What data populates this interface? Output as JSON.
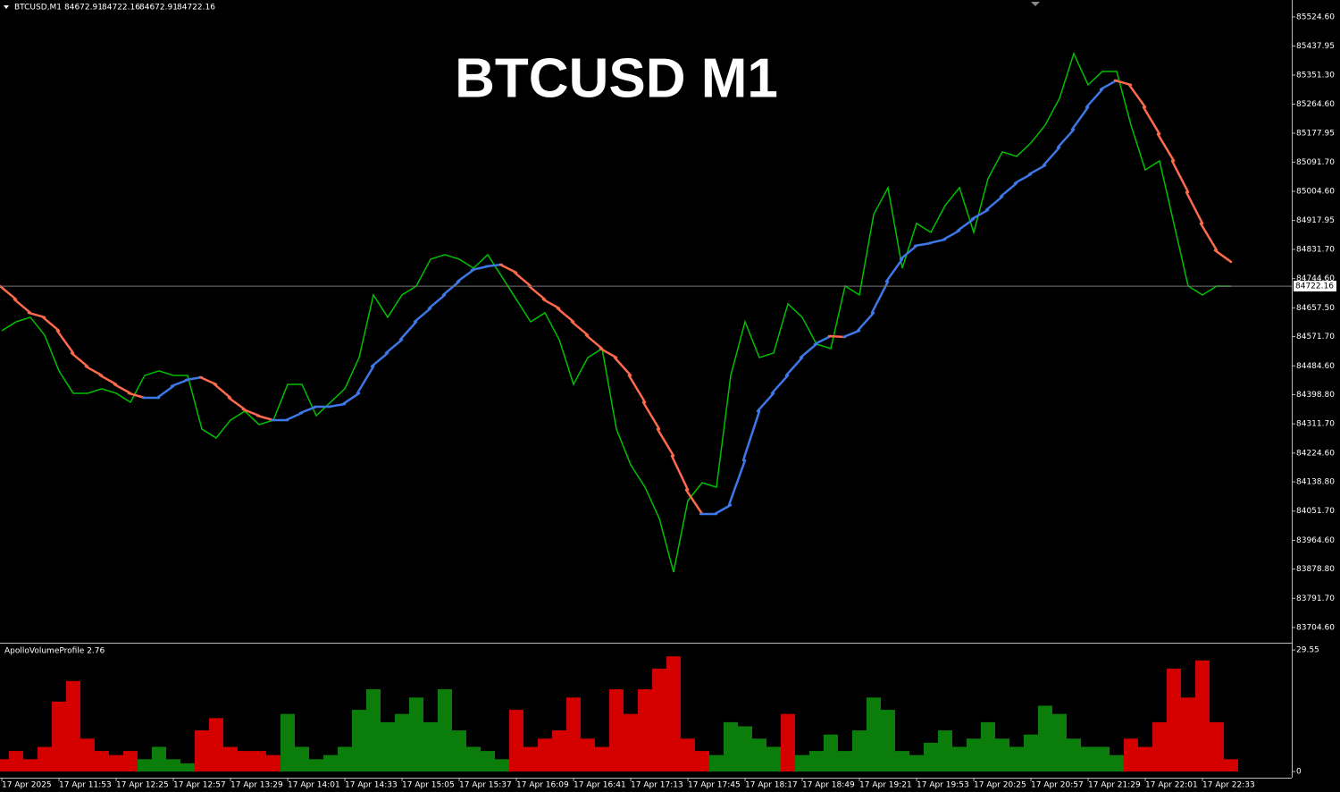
{
  "chart_data": [
    {
      "type": "line",
      "title": "BTCUSD M1",
      "header": "BTCUSD,M1",
      "ohlc": [
        84672.91,
        84722.16,
        84672.91,
        84722.16
      ],
      "last_price": 84722.16,
      "ylim": [
        83662,
        85575
      ],
      "yticks": [
        {
          "value": 85524.6,
          "label": "85524.60"
        },
        {
          "value": 85437.95,
          "label": "85437.95"
        },
        {
          "value": 85351.3,
          "label": "85351.30"
        },
        {
          "value": 85264.6,
          "label": "85264.60"
        },
        {
          "value": 85177.95,
          "label": "85177.95"
        },
        {
          "value": 85091.7,
          "label": "85091.70"
        },
        {
          "value": 85004.6,
          "label": "85004.60"
        },
        {
          "value": 84917.95,
          "label": "84917.95"
        },
        {
          "value": 84831.7,
          "label": "84831.70"
        },
        {
          "value": 84744.6,
          "label": "84744.60"
        },
        {
          "value": 84657.5,
          "label": "84657.50"
        },
        {
          "value": 84571.7,
          "label": "84571.70"
        },
        {
          "value": 84484.6,
          "label": "84484.60"
        },
        {
          "value": 84398.8,
          "label": "84398.80"
        },
        {
          "value": 84311.7,
          "label": "84311.70"
        },
        {
          "value": 84224.6,
          "label": "84224.60"
        },
        {
          "value": 84138.8,
          "label": "84138.80"
        },
        {
          "value": 84051.7,
          "label": "84051.70"
        },
        {
          "value": 83964.6,
          "label": "83964.60"
        },
        {
          "value": 83878.8,
          "label": "83878.80"
        },
        {
          "value": 83791.7,
          "label": "83791.70"
        },
        {
          "value": 83704.6,
          "label": "83704.60"
        }
      ],
      "series": [
        {
          "color": "#00c000",
          "values": [
            84589.3,
            84615.9,
            84629.3,
            84576.0,
            84469.4,
            84402.8,
            84402.8,
            84416.1,
            84402.8,
            84376.1,
            84456.1,
            84469.4,
            84456.1,
            84456.1,
            84296.2,
            84269.5,
            84322.8,
            84349.5,
            84309.5,
            84322.8,
            84429.4,
            84429.4,
            84336.1,
            84376.1,
            84416.1,
            84509.3,
            84695.9,
            84629.3,
            84695.9,
            84722.5,
            84802.5,
            84815.8,
            84802.5,
            84775.8,
            84815.8,
            84749.2,
            84682.6,
            84615.9,
            84642.6,
            84562.6,
            84429.4,
            84509.3,
            84536.0,
            84296.2,
            84189.6,
            84123.0,
            84029.7,
            83869.8,
            84083.0,
            84136.3,
            84123.0,
            84456.1,
            84615.9,
            84509.3,
            84522.7,
            84669.2,
            84629.3,
            84549.3,
            84536.0,
            84722.5,
            84695.9,
            84935.7,
            85015.6,
            84775.8,
            84909.1,
            84882.4,
            84962.3,
            85015.6,
            84882.4,
            85042.3,
            85122.2,
            85108.9,
            85148.9,
            85202.2,
            85282.1,
            85415.3,
            85322.1,
            85362.1,
            85362.1,
            85202.2,
            85068.9,
            85095.6,
            84909.1,
            84722.5,
            84695.9,
            84722.5,
            84722.16
          ]
        },
        {
          "up_color": "#3d78e6",
          "down_color": "#ff6a4d",
          "values": [
            84722.5,
            84682.6,
            84642.6,
            84629.3,
            84589.3,
            84522.7,
            84482.7,
            84456.1,
            84429.4,
            84402.8,
            84389.4,
            84389.4,
            84424.1,
            84442.7,
            84450.7,
            84429.4,
            84389.4,
            84354.8,
            84336.1,
            84322.8,
            84322.8,
            84344.1,
            84362.8,
            84362.8,
            84370.8,
            84402.8,
            84482.7,
            84522.7,
            84562.6,
            84615.9,
            84655.9,
            84695.9,
            84735.8,
            84770.5,
            84781.1,
            84786.5,
            84762.5,
            84722.5,
            84682.6,
            84655.9,
            84615.9,
            84576.0,
            84536.0,
            84509.3,
            84456.1,
            84376.1,
            84296.2,
            84216.2,
            84115.0,
            84043.0,
            84043.0,
            84069.7,
            84202.9,
            84349.5,
            84402.8,
            84456.1,
            84509.3,
            84549.3,
            84573.3,
            84570.6,
            84589.3,
            84642.6,
            84735.8,
            84802.5,
            84842.4,
            84850.4,
            84861.1,
            84887.7,
            84922.4,
            84949.0,
            84989.0,
            85029.0,
            85055.6,
            85082.3,
            85135.6,
            85188.8,
            85255.5,
            85308.8,
            85335.4,
            85322.1,
            85255.5,
            85175.5,
            85095.6,
            85002.3,
            84909.1,
            84829.1,
            84794.5
          ]
        }
      ]
    },
    {
      "type": "bar",
      "title": "ApolloVolumeProfile 2.76",
      "ylim": [
        -1.5,
        31.1
      ],
      "yticks": [
        29.55,
        0
      ],
      "categories": [
        "17 Apr 2025",
        null,
        null,
        null,
        "17 Apr 11:53",
        null,
        null,
        null,
        "17 Apr 12:25",
        null,
        null,
        null,
        "17 Apr 12:57",
        null,
        null,
        null,
        "17 Apr 13:29",
        null,
        null,
        null,
        "17 Apr 14:01",
        null,
        null,
        null,
        "17 Apr 14:33",
        null,
        null,
        null,
        "17 Apr 15:05",
        null,
        null,
        null,
        "17 Apr 15:37",
        null,
        null,
        null,
        "17 Apr 16:09",
        null,
        null,
        null,
        "17 Apr 16:41",
        null,
        null,
        null,
        "17 Apr 17:13",
        null,
        null,
        null,
        "17 Apr 17:45",
        null,
        null,
        null,
        "17 Apr 18:17",
        null,
        null,
        null,
        "17 Apr 18:49",
        null,
        null,
        null,
        "17 Apr 19:21",
        null,
        null,
        null,
        "17 Apr 19:53",
        null,
        null,
        null,
        "17 Apr 20:25",
        null,
        null,
        null,
        "17 Apr 20:57",
        null,
        null,
        null,
        "17 Apr 21:29",
        null,
        null,
        null,
        "17 Apr 22:01",
        null,
        null,
        null,
        "17 Apr 22:33",
        null,
        null
      ],
      "values": [
        3,
        5,
        3,
        6,
        17,
        22,
        8,
        5,
        4,
        5,
        3,
        6,
        3,
        2,
        10,
        13,
        6,
        5,
        5,
        4,
        14,
        6,
        3,
        4,
        6,
        15,
        20,
        12,
        14,
        18,
        12,
        20,
        10,
        6,
        5,
        3,
        15,
        6,
        8,
        10,
        18,
        8,
        6,
        20,
        14,
        20,
        25,
        28,
        8,
        5,
        4,
        12,
        11,
        8,
        6,
        14,
        4,
        5,
        9,
        5,
        10,
        18,
        15,
        5,
        4,
        7,
        10,
        6,
        8,
        12,
        8,
        6,
        9,
        16,
        14,
        8,
        6,
        6,
        4,
        8,
        6,
        12,
        25,
        18,
        27,
        12,
        3
      ],
      "colors": [
        "#d40000",
        "#d40000",
        "#d40000",
        "#d40000",
        "#d40000",
        "#d40000",
        "#d40000",
        "#d40000",
        "#d40000",
        "#d40000",
        "#0a7d0a",
        "#0a7d0a",
        "#0a7d0a",
        "#0a7d0a",
        "#d40000",
        "#d40000",
        "#d40000",
        "#d40000",
        "#d40000",
        "#d40000",
        "#0a7d0a",
        "#0a7d0a",
        "#0a7d0a",
        "#0a7d0a",
        "#0a7d0a",
        "#0a7d0a",
        "#0a7d0a",
        "#0a7d0a",
        "#0a7d0a",
        "#0a7d0a",
        "#0a7d0a",
        "#0a7d0a",
        "#0a7d0a",
        "#0a7d0a",
        "#0a7d0a",
        "#0a7d0a",
        "#d40000",
        "#d40000",
        "#d40000",
        "#d40000",
        "#d40000",
        "#d40000",
        "#d40000",
        "#d40000",
        "#d40000",
        "#d40000",
        "#d40000",
        "#d40000",
        "#d40000",
        "#d40000",
        "#0a7d0a",
        "#0a7d0a",
        "#0a7d0a",
        "#0a7d0a",
        "#0a7d0a",
        "#d40000",
        "#0a7d0a",
        "#0a7d0a",
        "#0a7d0a",
        "#0a7d0a",
        "#0a7d0a",
        "#0a7d0a",
        "#0a7d0a",
        "#0a7d0a",
        "#0a7d0a",
        "#0a7d0a",
        "#0a7d0a",
        "#0a7d0a",
        "#0a7d0a",
        "#0a7d0a",
        "#0a7d0a",
        "#0a7d0a",
        "#0a7d0a",
        "#0a7d0a",
        "#0a7d0a",
        "#0a7d0a",
        "#0a7d0a",
        "#0a7d0a",
        "#0a7d0a",
        "#d40000",
        "#d40000",
        "#d40000",
        "#d40000",
        "#d40000",
        "#d40000",
        "#d40000",
        "#d40000"
      ]
    }
  ]
}
